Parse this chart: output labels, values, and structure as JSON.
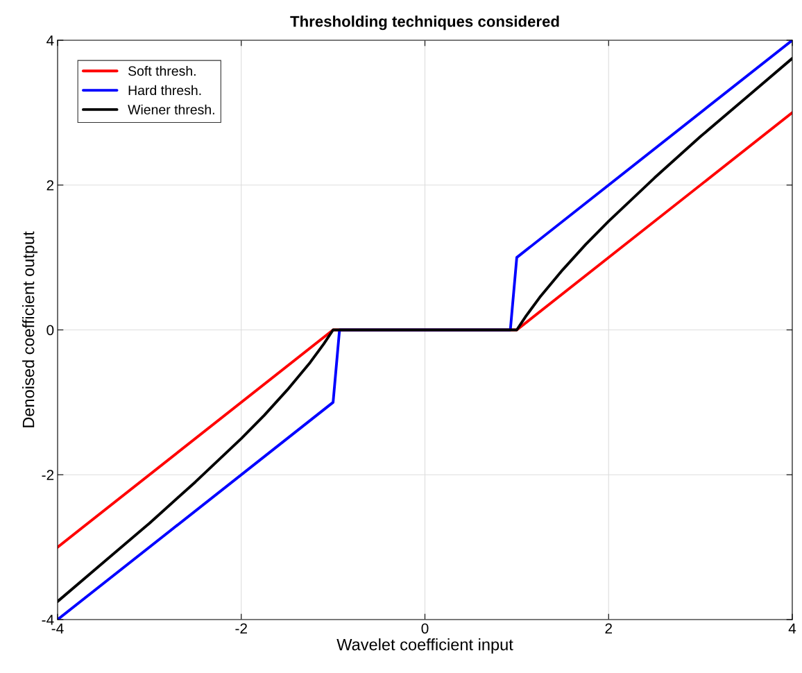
{
  "chart_data": {
    "type": "line",
    "title": "Thresholding techniques considered",
    "xlabel": "Wavelet coefficient input",
    "ylabel": "Denoised coefficient output",
    "xlim": [
      -4,
      4
    ],
    "ylim": [
      -4,
      4
    ],
    "xticks": [
      -4,
      -2,
      0,
      2,
      4
    ],
    "yticks": [
      -4,
      -2,
      0,
      2,
      4
    ],
    "grid": true,
    "legend": "top left",
    "series": [
      {
        "name": "Soft thresh.",
        "color": "#ff0000",
        "x": [
          -4,
          -1,
          1,
          4
        ],
        "values": [
          -3,
          0,
          0,
          3
        ]
      },
      {
        "name": "Hard thresh.",
        "color": "#0000ff",
        "x": [
          -4,
          -1,
          -0.93,
          0.93,
          1,
          4
        ],
        "values": [
          -4,
          -1,
          0,
          0,
          1,
          4
        ]
      },
      {
        "name": "Wiener thresh.",
        "color": "#000000",
        "x": [
          -4,
          -3.5,
          -3,
          -2.5,
          -2,
          -1.75,
          -1.5,
          -1.25,
          -1.1,
          -1,
          1,
          1.1,
          1.25,
          1.5,
          1.75,
          2,
          2.5,
          3,
          3.5,
          4
        ],
        "values": [
          -3.75,
          -3.21,
          -2.67,
          -2.1,
          -1.5,
          -1.18,
          -0.83,
          -0.45,
          -0.19,
          0,
          0,
          0.19,
          0.45,
          0.83,
          1.18,
          1.5,
          2.1,
          2.67,
          3.21,
          3.75
        ]
      }
    ]
  }
}
